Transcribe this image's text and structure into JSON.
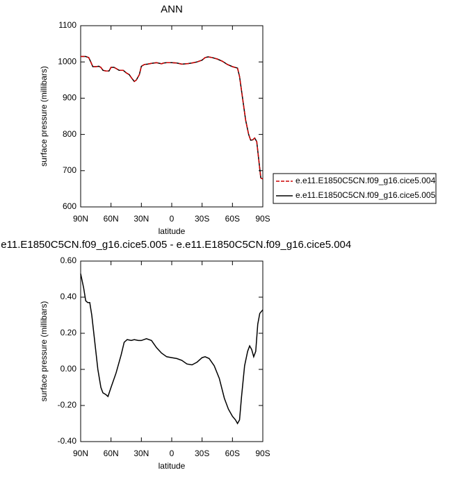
{
  "chart_data": [
    {
      "type": "line",
      "title": "ANN",
      "xlabel": "latitude",
      "ylabel": "surface pressure (millibars)",
      "xlim": [
        90,
        -90
      ],
      "xticks": [
        {
          "value": 90,
          "label": "90N"
        },
        {
          "value": 60,
          "label": "60N"
        },
        {
          "value": 30,
          "label": "30N"
        },
        0,
        {
          "value": -30,
          "label": "30S"
        },
        {
          "value": -60,
          "label": "60S"
        },
        {
          "value": -90,
          "label": "90S"
        }
      ],
      "ylim": [
        600,
        1100
      ],
      "yticks": [
        600,
        700,
        800,
        900,
        1000,
        1100
      ],
      "legend": "right",
      "x": [
        90,
        85,
        82,
        80,
        78,
        75,
        72,
        70,
        68,
        65,
        62,
        60,
        57,
        55,
        52,
        48,
        45,
        42,
        40,
        37,
        35,
        32,
        30,
        27,
        24,
        20,
        15,
        12,
        10,
        8,
        5,
        0,
        -5,
        -10,
        -15,
        -20,
        -25,
        -30,
        -33,
        -36,
        -40,
        -45,
        -50,
        -55,
        -60,
        -65,
        -67,
        -70,
        -73,
        -76,
        -78,
        -80,
        -82,
        -84,
        -86,
        -88,
        -90
      ],
      "series": [
        {
          "name": "e.e11.E1850C5CN.f09_g16.cice5.004",
          "color": "#cc0000",
          "line_style": "dashed",
          "values": [
            1015,
            1015,
            1012,
            1000,
            987,
            987,
            988,
            985,
            977,
            975,
            975,
            985,
            985,
            982,
            977,
            977,
            970,
            965,
            957,
            946,
            950,
            965,
            988,
            993,
            994,
            996,
            998,
            996,
            995,
            997,
            998,
            998,
            997,
            994,
            995,
            997,
            1000,
            1005,
            1012,
            1014,
            1012,
            1008,
            1002,
            993,
            987,
            983,
            960,
            900,
            840,
            800,
            784,
            785,
            790,
            780,
            730,
            680,
            677
          ]
        },
        {
          "name": "e.e11.E1850C5CN.f09_g16.cice5.005",
          "color": "#000000",
          "line_style": "solid",
          "values": [
            1015,
            1015,
            1012,
            1000,
            987,
            987,
            988,
            985,
            977,
            975,
            975,
            985,
            985,
            982,
            977,
            977,
            970,
            965,
            957,
            946,
            950,
            965,
            988,
            993,
            994,
            996,
            998,
            996,
            995,
            997,
            998,
            998,
            997,
            994,
            995,
            997,
            1000,
            1005,
            1012,
            1014,
            1012,
            1008,
            1002,
            993,
            987,
            983,
            960,
            900,
            840,
            800,
            784,
            785,
            790,
            780,
            730,
            680,
            677
          ]
        }
      ]
    },
    {
      "type": "line",
      "title": "e.e11.E1850C5CN.f09_g16.cice5.005 - e.e11.E1850C5CN.f09_g16.cice5.004",
      "xlabel": "latitude",
      "ylabel": "surface pressure (millibars)",
      "xlim": [
        90,
        -90
      ],
      "xticks": [
        {
          "value": 90,
          "label": "90N"
        },
        {
          "value": 60,
          "label": "60N"
        },
        {
          "value": 30,
          "label": "30N"
        },
        0,
        {
          "value": -30,
          "label": "30S"
        },
        {
          "value": -60,
          "label": "60S"
        },
        {
          "value": -90,
          "label": "90S"
        }
      ],
      "ylim": [
        -0.4,
        0.6
      ],
      "yticks": [
        {
          "value": -0.4,
          "label": "-0.40"
        },
        {
          "value": -0.2,
          "label": "-0.20"
        },
        {
          "value": 0,
          "label": "0.00"
        },
        {
          "value": 0.2,
          "label": "0.20"
        },
        {
          "value": 0.4,
          "label": "0.40"
        },
        {
          "value": 0.6,
          "label": "0.60"
        }
      ],
      "x": [
        90,
        87,
        85,
        83,
        81,
        79,
        76,
        73,
        70,
        68,
        65,
        63,
        60,
        55,
        50,
        47,
        44,
        40,
        37,
        33,
        30,
        25,
        20,
        15,
        10,
        5,
        0,
        -5,
        -10,
        -15,
        -20,
        -25,
        -30,
        -33,
        -37,
        -42,
        -47,
        -52,
        -56,
        -60,
        -63,
        -65,
        -67,
        -69,
        -72,
        -75,
        -77,
        -79,
        -81,
        -83,
        -85,
        -87,
        -90
      ],
      "series": [
        {
          "color": "#000000",
          "line_style": "solid",
          "values": [
            0.53,
            0.45,
            0.38,
            0.37,
            0.37,
            0.3,
            0.15,
            0.0,
            -0.1,
            -0.13,
            -0.14,
            -0.15,
            -0.1,
            -0.02,
            0.08,
            0.15,
            0.165,
            0.16,
            0.165,
            0.16,
            0.16,
            0.17,
            0.16,
            0.12,
            0.09,
            0.07,
            0.065,
            0.06,
            0.05,
            0.03,
            0.025,
            0.04,
            0.065,
            0.07,
            0.06,
            0.02,
            -0.05,
            -0.16,
            -0.22,
            -0.26,
            -0.28,
            -0.3,
            -0.28,
            -0.15,
            0.02,
            0.1,
            0.13,
            0.11,
            0.07,
            0.1,
            0.25,
            0.31,
            0.33
          ]
        }
      ]
    }
  ]
}
